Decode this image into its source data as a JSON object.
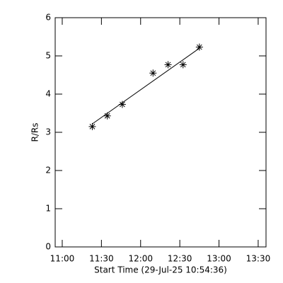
{
  "chart_data": {
    "type": "scatter",
    "x_label": "Start Time (29-Jul-25 10:54:36)",
    "y_label": "R/Rs",
    "x": [
      683,
      694.5,
      706,
      729.5,
      741,
      752.5,
      765
    ],
    "values": [
      3.15,
      3.43,
      3.73,
      4.55,
      4.77,
      4.77,
      5.23
    ],
    "fit": {
      "x": [
        683,
        765
      ],
      "values": [
        3.22,
        5.2
      ]
    },
    "color": "#000000",
    "xlim": [
      654.6,
      816
    ],
    "xticks": [
      {
        "value": 660,
        "label": "11:00"
      },
      {
        "value": 690,
        "label": "11:30"
      },
      {
        "value": 720,
        "label": "12:00"
      },
      {
        "value": 750,
        "label": "12:30"
      },
      {
        "value": 780,
        "label": "13:00"
      },
      {
        "value": 810,
        "label": "13:30"
      }
    ],
    "ylim": [
      0,
      6
    ],
    "yticks": [
      0,
      1,
      2,
      3,
      4,
      5,
      6
    ]
  }
}
